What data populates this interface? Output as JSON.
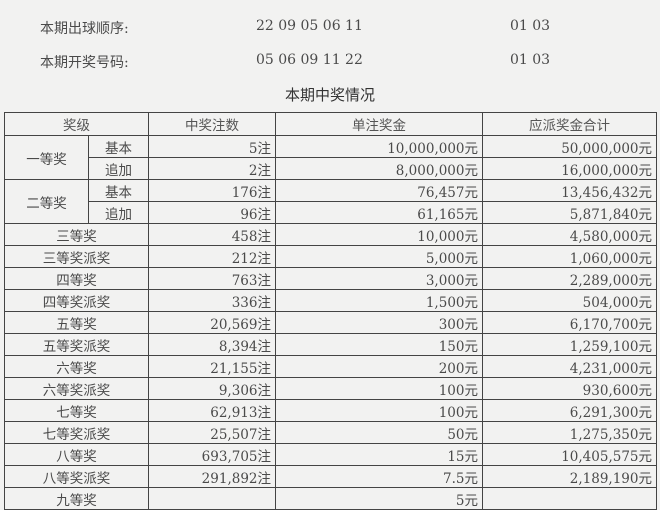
{
  "draw": {
    "order_label": "本期出球顺序:",
    "order_front": "22 09 05 06 11",
    "order_back": "01 03",
    "numbers_label": "本期开奖号码:",
    "numbers_front": "05 06 09 11 22",
    "numbers_back": "01 03"
  },
  "table_title": "本期中奖情况",
  "headers": [
    "奖级",
    "中奖注数",
    "单注奖金",
    "应派奖金合计"
  ],
  "tiered": [
    {
      "grade": "一等奖",
      "rows": [
        {
          "sub": "基本",
          "count": "5注",
          "prize": "10,000,000元",
          "total": "50,000,000元"
        },
        {
          "sub": "追加",
          "count": "2注",
          "prize": "8,000,000元",
          "total": "16,000,000元"
        }
      ]
    },
    {
      "grade": "二等奖",
      "rows": [
        {
          "sub": "基本",
          "count": "176注",
          "prize": "76,457元",
          "total": "13,456,432元"
        },
        {
          "sub": "追加",
          "count": "96注",
          "prize": "61,165元",
          "total": "5,871,840元"
        }
      ]
    }
  ],
  "rows": [
    {
      "grade": "三等奖",
      "count": "458注",
      "prize": "10,000元",
      "total": "4,580,000元"
    },
    {
      "grade": "三等奖派奖",
      "count": "212注",
      "prize": "5,000元",
      "total": "1,060,000元"
    },
    {
      "grade": "四等奖",
      "count": "763注",
      "prize": "3,000元",
      "total": "2,289,000元"
    },
    {
      "grade": "四等奖派奖",
      "count": "336注",
      "prize": "1,500元",
      "total": "504,000元"
    },
    {
      "grade": "五等奖",
      "count": "20,569注",
      "prize": "300元",
      "total": "6,170,700元"
    },
    {
      "grade": "五等奖派奖",
      "count": "8,394注",
      "prize": "150元",
      "total": "1,259,100元"
    },
    {
      "grade": "六等奖",
      "count": "21,155注",
      "prize": "200元",
      "total": "4,231,000元"
    },
    {
      "grade": "六等奖派奖",
      "count": "9,306注",
      "prize": "100元",
      "total": "930,600元"
    },
    {
      "grade": "七等奖",
      "count": "62,913注",
      "prize": "100元",
      "total": "6,291,300元"
    },
    {
      "grade": "七等奖派奖",
      "count": "25,507注",
      "prize": "50元",
      "total": "1,275,350元"
    },
    {
      "grade": "八等奖",
      "count": "693,705注",
      "prize": "15元",
      "total": "10,405,575元"
    },
    {
      "grade": "八等奖派奖",
      "count": "291,892注",
      "prize": "7.5元",
      "total": "2,189,190元"
    },
    {
      "grade": "九等奖",
      "count": "",
      "prize": "5元",
      "total": ""
    }
  ]
}
